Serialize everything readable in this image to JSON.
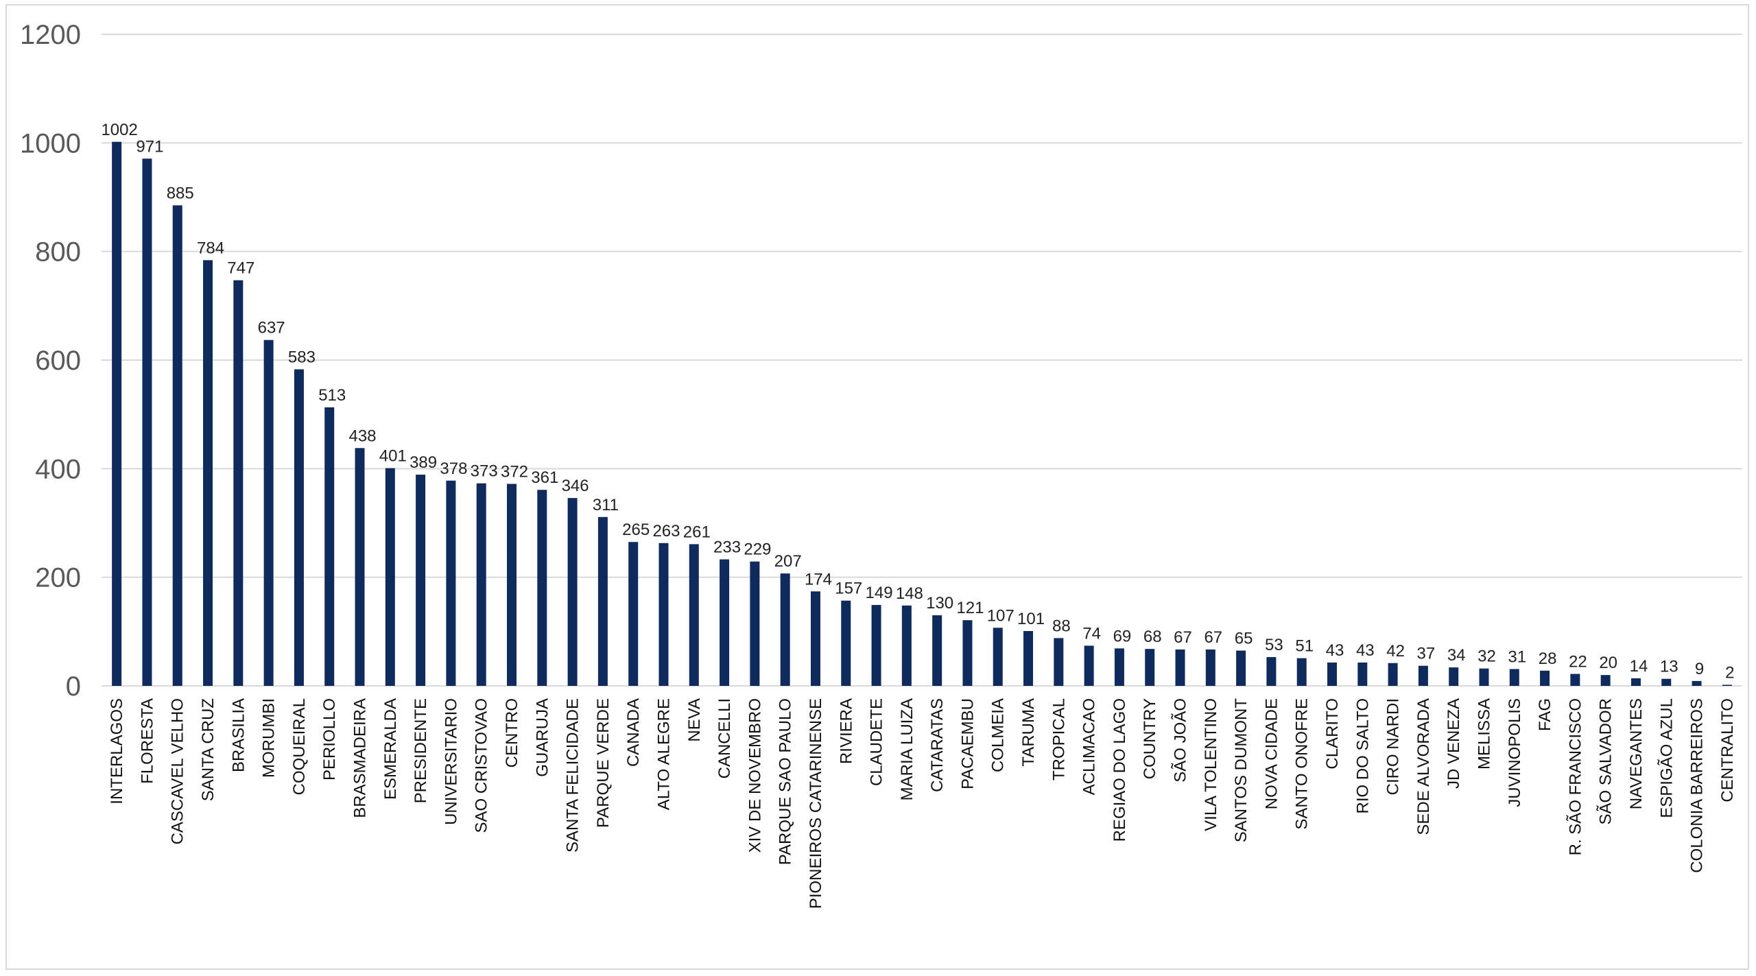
{
  "chart_data": {
    "type": "bar",
    "title": "",
    "xlabel": "",
    "ylabel": "",
    "ylim": [
      0,
      1200
    ],
    "yticks": [
      0,
      200,
      400,
      600,
      800,
      1000,
      1200
    ],
    "grid": true,
    "legend": "none",
    "bar_color": "#0f2a5c",
    "categories": [
      "INTERLAGOS",
      "FLORESTA",
      "CASCAVEL VELHO",
      "SANTA CRUZ",
      "BRASILIA",
      "MORUMBI",
      "COQUEIRAL",
      "PERIOLLO",
      "BRASMADEIRA",
      "ESMERALDA",
      "PRESIDENTE",
      "UNIVERSITARIO",
      "SAO CRISTOVAO",
      "CENTRO",
      "GUARUJA",
      "SANTA FELICIDADE",
      "PARQUE VERDE",
      "CANADA",
      "ALTO ALEGRE",
      "NEVA",
      "CANCELLI",
      "XIV DE NOVEMBRO",
      "PARQUE SAO PAULO",
      "PIONEIROS CATARINENSE",
      "RIVIERA",
      "CLAUDETE",
      "MARIA LUIZA",
      "CATARATAS",
      "PACAEMBU",
      "COLMEIA",
      "TARUMA",
      "TROPICAL",
      "ACLIMACAO",
      "REGIAO DO LAGO",
      "COUNTRY",
      "SÃO JOÃO",
      "VILA TOLENTINO",
      "SANTOS DUMONT",
      "NOVA CIDADE",
      "SANTO ONOFRE",
      "CLARITO",
      "RIO DO SALTO",
      "CIRO NARDI",
      "SEDE ALVORADA",
      "JD VENEZA",
      "MELISSA",
      "JUVINOPOLIS",
      "FAG",
      "R. SÃO FRANCISCO",
      "SÃO SALVADOR",
      "NAVEGANTES",
      "ESPIGÃO AZUL",
      "COLONIA BARREIROS",
      "CENTRALITO"
    ],
    "values": [
      1002,
      971,
      885,
      784,
      747,
      637,
      583,
      513,
      438,
      401,
      389,
      378,
      373,
      372,
      361,
      346,
      311,
      265,
      263,
      261,
      233,
      229,
      207,
      174,
      157,
      149,
      148,
      130,
      121,
      107,
      101,
      88,
      74,
      69,
      68,
      67,
      67,
      65,
      53,
      51,
      43,
      43,
      42,
      37,
      34,
      32,
      31,
      28,
      22,
      20,
      14,
      13,
      9,
      2
    ]
  }
}
